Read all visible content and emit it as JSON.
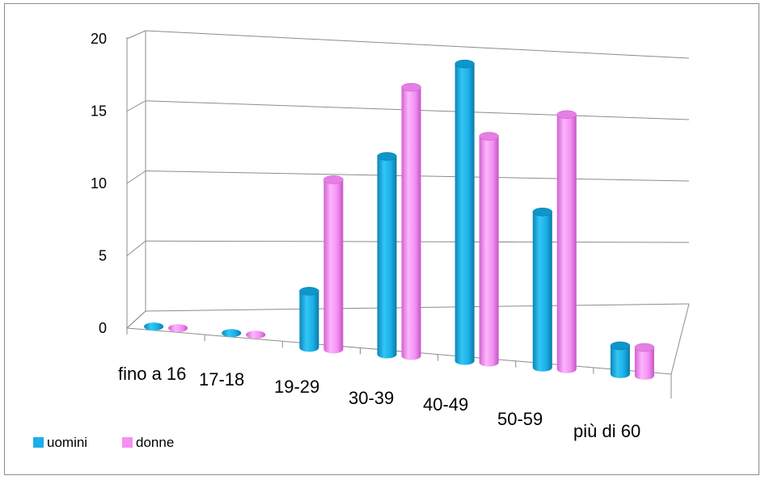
{
  "chart_data": {
    "type": "bar",
    "style": "3d-cylinder",
    "categories": [
      "fino a 16",
      "17-18",
      "19-29",
      "30-39",
      "40-49",
      "50-59",
      "più di 60"
    ],
    "series": [
      {
        "name": "uomini",
        "color": "#1AAFE6",
        "values": [
          0,
          0,
          4,
          14,
          21,
          11,
          2
        ]
      },
      {
        "name": "donne",
        "color": "#F490F4",
        "values": [
          0,
          0,
          12,
          19,
          16,
          18,
          2
        ]
      }
    ],
    "ylim": [
      0,
      20
    ],
    "yticks": [
      "0",
      "5",
      "10",
      "15",
      "20"
    ],
    "grid": true,
    "legend_position": "bottom-left"
  }
}
